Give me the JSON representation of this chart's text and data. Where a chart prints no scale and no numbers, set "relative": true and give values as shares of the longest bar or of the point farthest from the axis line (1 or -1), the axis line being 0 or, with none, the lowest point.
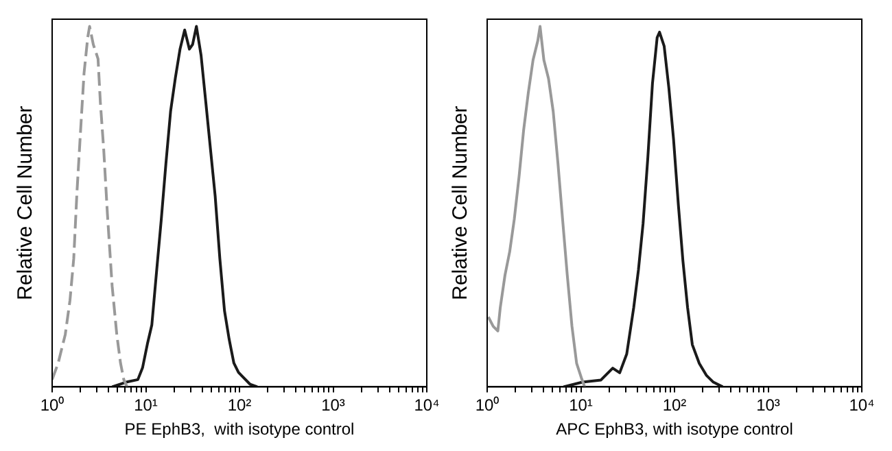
{
  "chart_data": [
    {
      "type": "line",
      "xlabel": "PE EphB3,  with isotype control",
      "ylabel": "Relative Cell Number",
      "relative": true,
      "log": "x",
      "xlim": [
        1,
        10000
      ],
      "xticks": [
        {
          "value": 1,
          "label": "10⁰"
        },
        {
          "value": 2,
          "label": null
        },
        {
          "value": 3,
          "label": null
        },
        {
          "value": 4,
          "label": null
        },
        {
          "value": 5,
          "label": null
        },
        {
          "value": 6,
          "label": null
        },
        {
          "value": 7,
          "label": null
        },
        {
          "value": 8,
          "label": null
        },
        {
          "value": 9,
          "label": null
        },
        {
          "value": 10,
          "label": "10¹"
        },
        {
          "value": 20,
          "label": null
        },
        {
          "value": 30,
          "label": null
        },
        {
          "value": 40,
          "label": null
        },
        {
          "value": 50,
          "label": null
        },
        {
          "value": 60,
          "label": null
        },
        {
          "value": 70,
          "label": null
        },
        {
          "value": 80,
          "label": null
        },
        {
          "value": 90,
          "label": null
        },
        {
          "value": 100,
          "label": "10²"
        },
        {
          "value": 200,
          "label": null
        },
        {
          "value": 300,
          "label": null
        },
        {
          "value": 400,
          "label": null
        },
        {
          "value": 500,
          "label": null
        },
        {
          "value": 600,
          "label": null
        },
        {
          "value": 700,
          "label": null
        },
        {
          "value": 800,
          "label": null
        },
        {
          "value": 900,
          "label": null
        },
        {
          "value": 1000,
          "label": "10³"
        },
        {
          "value": 2000,
          "label": null
        },
        {
          "value": 3000,
          "label": null
        },
        {
          "value": 4000,
          "label": null
        },
        {
          "value": 5000,
          "label": null
        },
        {
          "value": 6000,
          "label": null
        },
        {
          "value": 7000,
          "label": null
        },
        {
          "value": 8000,
          "label": null
        },
        {
          "value": 9000,
          "label": null
        },
        {
          "value": 10000,
          "label": "10⁴"
        }
      ],
      "series": [
        {
          "color": "#999999",
          "line_style": "dashed",
          "x": [
            1,
            1.16,
            1.38,
            1.55,
            1.7,
            1.84,
            2.0,
            2.19,
            2.4,
            2.51,
            2.75,
            3.09,
            3.27,
            3.55,
            3.89,
            4.37,
            4.9,
            5.37,
            5.82,
            6.31
          ],
          "values": [
            0.02,
            0.066,
            0.145,
            0.24,
            0.356,
            0.54,
            0.7,
            0.87,
            0.97,
            1,
            0.95,
            0.91,
            0.79,
            0.66,
            0.48,
            0.28,
            0.145,
            0.066,
            0.02,
            0
          ]
        },
        {
          "color": "#1a1a1a",
          "x": [
            4.37,
            6.17,
            8.22,
            9.23,
            10.4,
            11.6,
            13.0,
            14.6,
            16.4,
            18.4,
            20.7,
            23.2,
            26.0,
            29.2,
            31.6,
            34.7,
            38.9,
            43.7,
            49.0,
            55.0,
            61.7,
            69.2,
            77.6,
            87.1,
            97.7,
            110,
            130,
            155
          ],
          "values": [
            0,
            0.013,
            0.02,
            0.053,
            0.119,
            0.172,
            0.317,
            0.462,
            0.62,
            0.765,
            0.858,
            0.937,
            0.99,
            0.937,
            0.95,
            1,
            0.92,
            0.79,
            0.66,
            0.53,
            0.356,
            0.211,
            0.132,
            0.066,
            0.04,
            0.026,
            0.007,
            0
          ]
        }
      ]
    },
    {
      "type": "line",
      "xlabel": "APC EphB3, with isotype control",
      "ylabel": "Relative Cell Number",
      "relative": true,
      "log": "x",
      "xlim": [
        1,
        10000
      ],
      "xticks": [
        {
          "value": 1,
          "label": "10⁰"
        },
        {
          "value": 2,
          "label": null
        },
        {
          "value": 3,
          "label": null
        },
        {
          "value": 4,
          "label": null
        },
        {
          "value": 5,
          "label": null
        },
        {
          "value": 6,
          "label": null
        },
        {
          "value": 7,
          "label": null
        },
        {
          "value": 8,
          "label": null
        },
        {
          "value": 9,
          "label": null
        },
        {
          "value": 10,
          "label": "10¹"
        },
        {
          "value": 20,
          "label": null
        },
        {
          "value": 30,
          "label": null
        },
        {
          "value": 40,
          "label": null
        },
        {
          "value": 50,
          "label": null
        },
        {
          "value": 60,
          "label": null
        },
        {
          "value": 70,
          "label": null
        },
        {
          "value": 80,
          "label": null
        },
        {
          "value": 90,
          "label": null
        },
        {
          "value": 100,
          "label": "10²"
        },
        {
          "value": 200,
          "label": null
        },
        {
          "value": 300,
          "label": null
        },
        {
          "value": 400,
          "label": null
        },
        {
          "value": 500,
          "label": null
        },
        {
          "value": 600,
          "label": null
        },
        {
          "value": 700,
          "label": null
        },
        {
          "value": 800,
          "label": null
        },
        {
          "value": 900,
          "label": null
        },
        {
          "value": 1000,
          "label": "10³"
        },
        {
          "value": 2000,
          "label": null
        },
        {
          "value": 3000,
          "label": null
        },
        {
          "value": 4000,
          "label": null
        },
        {
          "value": 5000,
          "label": null
        },
        {
          "value": 6000,
          "label": null
        },
        {
          "value": 7000,
          "label": null
        },
        {
          "value": 8000,
          "label": null
        },
        {
          "value": 9000,
          "label": null
        },
        {
          "value": 10000,
          "label": "10⁴"
        }
      ],
      "series": [
        {
          "color": "#999999",
          "x": [
            1.03,
            1.16,
            1.3,
            1.38,
            1.55,
            1.74,
            1.95,
            2.19,
            2.45,
            2.75,
            3.09,
            3.47,
            3.67,
            4.03,
            4.52,
            5.07,
            5.69,
            6.38,
            7.16,
            8.04,
            9.02,
            10.1,
            11.0
          ],
          "values": [
            0.194,
            0.168,
            0.155,
            0.22,
            0.31,
            0.375,
            0.466,
            0.583,
            0.712,
            0.816,
            0.907,
            0.96,
            1,
            0.907,
            0.855,
            0.764,
            0.622,
            0.466,
            0.311,
            0.168,
            0.065,
            0.026,
            0
          ]
        },
        {
          "color": "#1a1a1a",
          "x": [
            6.53,
            10.4,
            16.4,
            21.9,
            26.0,
            30.9,
            36.7,
            41.2,
            46.2,
            51.9,
            58.2,
            65.3,
            69.2,
            77.6,
            87.1,
            97.7,
            110,
            123,
            138,
            155,
            184,
            219,
            260,
            327
          ],
          "values": [
            0,
            0.013,
            0.019,
            0.052,
            0.039,
            0.091,
            0.22,
            0.324,
            0.453,
            0.635,
            0.842,
            0.969,
            0.984,
            0.945,
            0.829,
            0.687,
            0.505,
            0.35,
            0.22,
            0.117,
            0.065,
            0.032,
            0.013,
            0
          ]
        }
      ]
    }
  ]
}
